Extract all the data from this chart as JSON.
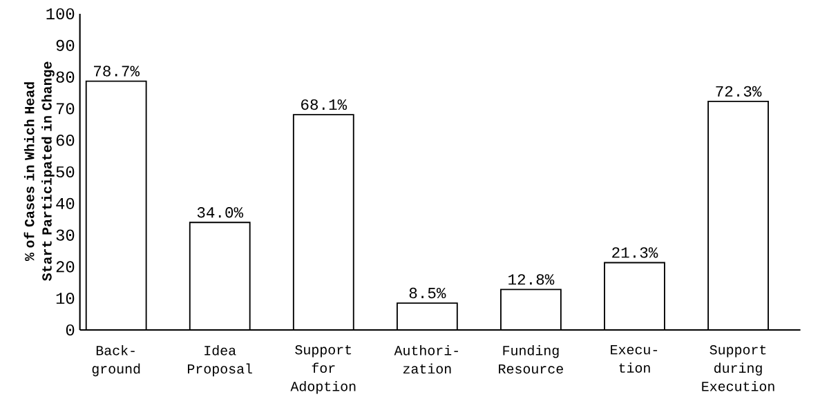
{
  "chart_data": {
    "type": "bar",
    "ylabel": "% of Cases in Which Head Start Participated in Change",
    "categories": [
      "Back- ground",
      "Idea Proposal",
      "Support for Adoption",
      "Authori- zation",
      "Funding Resource",
      "Execu- tion",
      "Support during Execution"
    ],
    "values": [
      78.7,
      34.0,
      68.1,
      8.5,
      12.8,
      21.3,
      72.3
    ],
    "value_labels": [
      "78.7%",
      "34.0%",
      "68.1%",
      "8.5%",
      "12.8%",
      "21.3%",
      "72.3%"
    ],
    "color": "#000000",
    "ylim": [
      0,
      100
    ],
    "yticks": [
      0,
      10,
      20,
      30,
      40,
      50,
      60,
      70,
      80,
      90,
      100
    ]
  }
}
